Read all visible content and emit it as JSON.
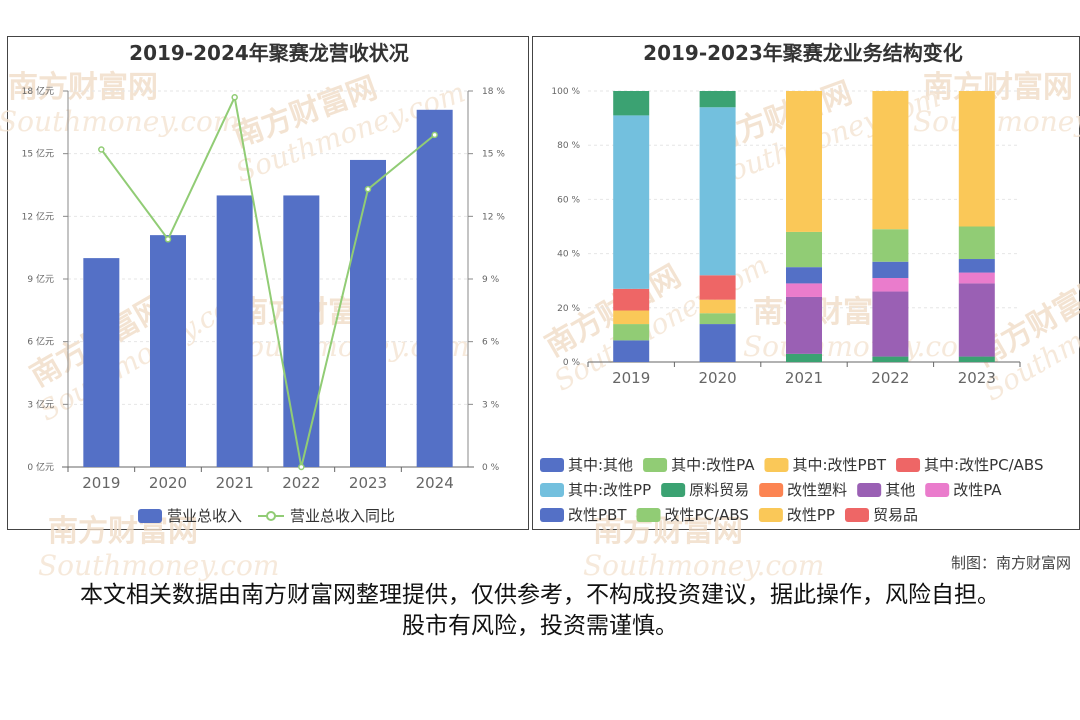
{
  "watermark": {
    "cn": "南方财富网",
    "en": "Southmoney.com"
  },
  "credit": "制图：南方财富网",
  "disclaimer": "本文相关数据由南方财富网整理提供，仅供参考，不构成投资建议，据此操作，风险自担。股市有风险，投资需谨慎。",
  "chart_data": [
    {
      "type": "bar",
      "title": "2019-2024年聚赛龙营收状况",
      "categories": [
        "2019",
        "2020",
        "2021",
        "2022",
        "2023",
        "2024"
      ],
      "y_left": {
        "ticks": [
          "0 亿元",
          "3 亿元",
          "6 亿元",
          "9 亿元",
          "12 亿元",
          "15 亿元",
          "18 亿元"
        ],
        "range": [
          0,
          18
        ],
        "unit": "亿元"
      },
      "y_right": {
        "ticks": [
          "0 %",
          "3 %",
          "6 %",
          "9 %",
          "12 %",
          "15 %",
          "18 %"
        ],
        "range": [
          0,
          18
        ],
        "unit": "%"
      },
      "series": [
        {
          "name": "营业总收入",
          "kind": "bar",
          "axis": "left",
          "values": [
            10.0,
            11.1,
            13.0,
            13.0,
            14.7,
            17.1
          ],
          "color": "#5470c6"
        },
        {
          "name": "营业总收入同比",
          "kind": "line",
          "axis": "right",
          "values": [
            15.2,
            10.9,
            17.7,
            0.0,
            13.3,
            15.9
          ],
          "color": "#91cc75"
        }
      ],
      "grid": true,
      "legend_position": "bottom"
    },
    {
      "type": "bar",
      "stacked": true,
      "title": "2019-2023年聚赛龙业务结构变化",
      "categories": [
        "2019",
        "2020",
        "2021",
        "2022",
        "2023"
      ],
      "y_ticks": [
        "0 %",
        "20 %",
        "40 %",
        "60 %",
        "80 %",
        "100 %"
      ],
      "ylim": [
        0,
        100
      ],
      "series": [
        {
          "name": "其中:其他",
          "color": "#5470c6",
          "values": [
            8,
            14,
            0,
            0,
            0
          ]
        },
        {
          "name": "其中:改性PA",
          "color": "#91cc75",
          "values": [
            6,
            4,
            0,
            0,
            0
          ]
        },
        {
          "name": "其中:改性PBT",
          "color": "#fac858",
          "values": [
            5,
            5,
            0,
            0,
            0
          ]
        },
        {
          "name": "其中:改性PC/ABS",
          "color": "#ee6666",
          "values": [
            8,
            9,
            0,
            0,
            0
          ]
        },
        {
          "name": "其中:改性PP",
          "color": "#73c0de",
          "values": [
            64,
            62,
            0,
            0,
            0
          ]
        },
        {
          "name": "原料贸易",
          "color": "#3ba272",
          "values": [
            9,
            6,
            3,
            2,
            2
          ]
        },
        {
          "name": "改性塑料",
          "color": "#fc8452",
          "values": [
            0,
            0,
            0,
            0,
            0
          ]
        },
        {
          "name": "其他",
          "color": "#9a60b4",
          "values": [
            0,
            0,
            21,
            24,
            27
          ]
        },
        {
          "name": "改性PA",
          "color": "#ea7ccc",
          "values": [
            0,
            0,
            5,
            5,
            4
          ]
        },
        {
          "name": "改性PBT",
          "color": "#5470c6",
          "values": [
            0,
            0,
            6,
            6,
            5
          ]
        },
        {
          "name": "改性PC/ABS",
          "color": "#91cc75",
          "values": [
            0,
            0,
            13,
            12,
            12
          ]
        },
        {
          "name": "改性PP",
          "color": "#fac858",
          "values": [
            0,
            0,
            52,
            51,
            50
          ]
        },
        {
          "name": "贸易品",
          "color": "#ee6666",
          "values": [
            0,
            0,
            0,
            0,
            0
          ]
        }
      ],
      "grid": true,
      "legend_position": "bottom"
    }
  ]
}
